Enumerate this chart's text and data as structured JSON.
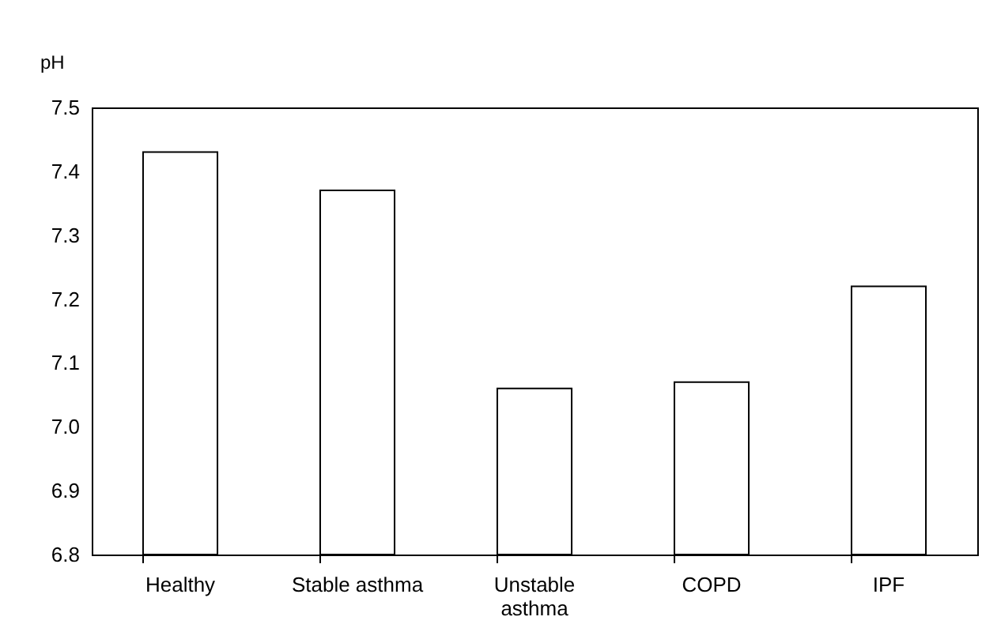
{
  "chart_data": {
    "type": "bar",
    "ylabel": "pH",
    "categories": [
      "Healthy",
      "Stable asthma",
      "Unstable asthma",
      "COPD",
      "IPF"
    ],
    "values": [
      7.43,
      7.37,
      7.06,
      7.07,
      7.22
    ],
    "color": "#ffffff",
    "ylim": [
      6.8,
      7.5
    ],
    "yticks": [
      {
        "value": 6.8,
        "label": "6.8"
      },
      {
        "value": 6.9,
        "label": "6.9"
      },
      {
        "value": 7.0,
        "label": "7.0"
      },
      {
        "value": 7.1,
        "label": "7.1"
      },
      {
        "value": 7.2,
        "label": "7.2"
      },
      {
        "value": 7.3,
        "label": "7.3"
      },
      {
        "value": 7.4,
        "label": "7.4"
      },
      {
        "value": 7.5,
        "label": "7.5"
      }
    ],
    "grid": false
  }
}
